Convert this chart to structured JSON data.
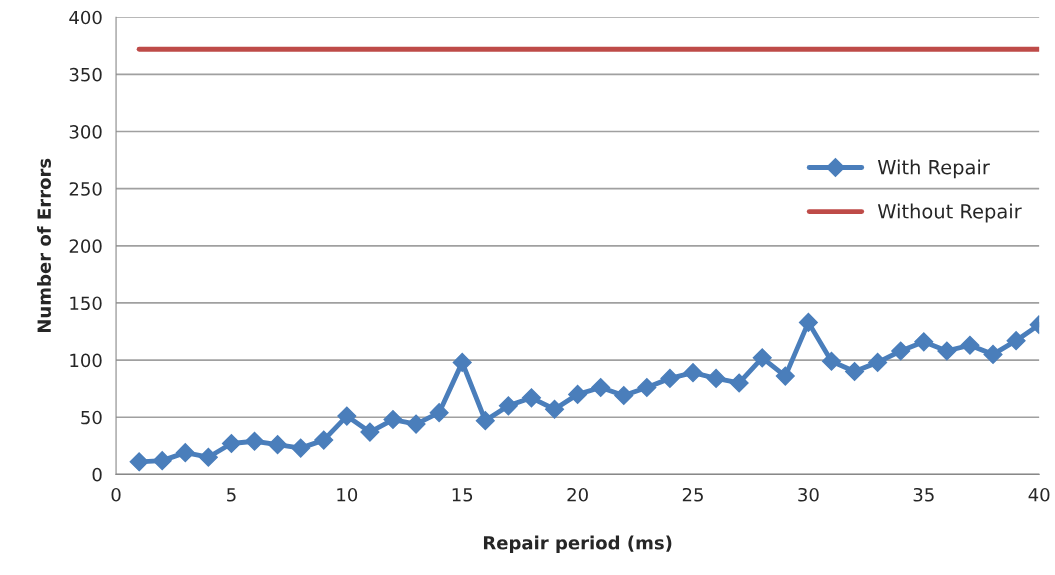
{
  "chart_data": {
    "type": "line",
    "xlabel": "Repair period (ms)",
    "ylabel": "Number of Errors",
    "xlim": [
      0,
      40
    ],
    "xticks": [
      0,
      5,
      10,
      15,
      20,
      25,
      30,
      35,
      40
    ],
    "ylim": [
      0,
      400
    ],
    "yticks": [
      0,
      50,
      100,
      150,
      200,
      250,
      300,
      350,
      400
    ],
    "grid": "y",
    "legend": "right",
    "series": [
      {
        "name": "With Repair",
        "color": "#4a7ebb",
        "marker": "diamond",
        "x": [
          1,
          2,
          3,
          4,
          5,
          6,
          7,
          8,
          9,
          10,
          11,
          12,
          13,
          14,
          15,
          16,
          17,
          18,
          19,
          20,
          21,
          22,
          23,
          24,
          25,
          26,
          27,
          28,
          29,
          30,
          31,
          32,
          33,
          34,
          35,
          36,
          37,
          38,
          39,
          40
        ],
        "values": [
          11,
          12,
          19,
          15,
          27,
          29,
          26,
          23,
          30,
          51,
          37,
          48,
          44,
          54,
          98,
          47,
          60,
          67,
          57,
          70,
          76,
          69,
          76,
          84,
          89,
          84,
          80,
          102,
          86,
          133,
          99,
          90,
          98,
          108,
          116,
          108,
          113,
          105,
          117,
          131
        ]
      },
      {
        "name": "Without Repair",
        "color": "#be4b48",
        "marker": "none",
        "x": [
          1,
          40
        ],
        "values": [
          372,
          372
        ]
      }
    ]
  }
}
